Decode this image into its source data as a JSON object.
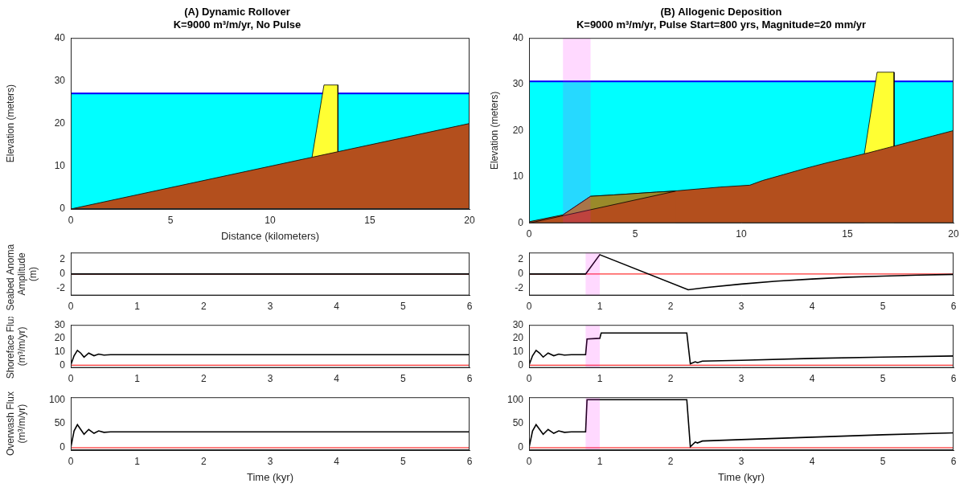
{
  "chart_data": [
    {
      "type": "area",
      "title": [
        "(A) Dynamic Rollover",
        "K=9000 m³/m/yr, No Pulse"
      ],
      "x_label": "Distance (kilometers)",
      "y_label": "Elevation (meters)",
      "xlim": [
        0,
        20
      ],
      "xticks": [
        0,
        5,
        10,
        15,
        20
      ],
      "ylim": [
        0,
        40
      ],
      "yticks": [
        0,
        10,
        20,
        30,
        40
      ],
      "grid": false,
      "series": [
        {
          "type": "area",
          "color": "#00ffff",
          "x": [
            0,
            20
          ],
          "values": [
            27,
            27
          ]
        },
        {
          "type": "line",
          "color": "#0000ff",
          "x": [
            0,
            20
          ],
          "values": [
            27,
            27
          ]
        },
        {
          "type": "area",
          "color": "#ffff33",
          "x": [
            12.1,
            12.7,
            13.4,
            13.4
          ],
          "values": [
            12.1,
            29,
            29,
            13.4
          ]
        },
        {
          "type": "area",
          "color": "#b34f1d",
          "x": [
            0,
            20
          ],
          "values": [
            0,
            20
          ]
        }
      ]
    },
    {
      "type": "line",
      "y_label": [
        "Seabed Anomaly",
        "Amplitude",
        "(m)"
      ],
      "xlim": [
        0,
        6
      ],
      "xticks": [
        0,
        1,
        2,
        3,
        4,
        5,
        6
      ],
      "ylim": [
        -3,
        3
      ],
      "yticks": [
        -2,
        0,
        2
      ],
      "grid": false,
      "reference_line": {
        "value": 0,
        "color": "#ff0000"
      },
      "series": [
        {
          "type": "line",
          "color": "#000000",
          "x": [
            0,
            6
          ],
          "values": [
            0,
            0
          ]
        }
      ]
    },
    {
      "type": "line",
      "y_label": [
        "Shoreface Flux",
        "(m³/m/yr)"
      ],
      "xlim": [
        0,
        6
      ],
      "xticks": [
        0,
        1,
        2,
        3,
        4,
        5,
        6
      ],
      "ylim": [
        -2,
        30
      ],
      "yticks": [
        0,
        10,
        20,
        30
      ],
      "grid": false,
      "reference_line": {
        "value": 0,
        "color": "#ff0000"
      },
      "series": [
        {
          "type": "line",
          "color": "#000000",
          "x": [
            0,
            0.05,
            0.1,
            0.15,
            0.2,
            0.27,
            0.35,
            0.42,
            0.5,
            0.6,
            6
          ],
          "values": [
            0,
            7,
            11,
            9,
            6,
            9,
            7,
            8.2,
            7.5,
            7.8,
            7.8
          ]
        }
      ]
    },
    {
      "type": "line",
      "x_label": "Time (kyr)",
      "y_label": [
        "Overwash Flux",
        "(m³/m/yr)"
      ],
      "xlim": [
        0,
        6
      ],
      "xticks": [
        0,
        1,
        2,
        3,
        4,
        5,
        6
      ],
      "ylim": [
        -5,
        105
      ],
      "yticks": [
        0,
        50,
        100
      ],
      "grid": false,
      "reference_line": {
        "value": 0,
        "color": "#ff0000"
      },
      "series": [
        {
          "type": "line",
          "color": "#000000",
          "x": [
            0,
            0.05,
            0.1,
            0.15,
            0.2,
            0.27,
            0.35,
            0.42,
            0.5,
            0.6,
            6
          ],
          "values": [
            0,
            35,
            48,
            38,
            28,
            38,
            30,
            35,
            32,
            33,
            33
          ]
        }
      ]
    },
    {
      "type": "area",
      "title": [
        "(B) Allogenic Deposition",
        "K=9000 m³/m/yr, Pulse Start=800 yrs, Magnitude=20 mm/yr"
      ],
      "y_label": "Elevation (meters)",
      "xlim": [
        0,
        20
      ],
      "xticks": [
        0,
        5,
        10,
        15,
        20
      ],
      "ylim": [
        0,
        40
      ],
      "yticks": [
        0,
        10,
        20,
        30,
        40
      ],
      "grid": false,
      "shaded_band": {
        "from": 1.6,
        "to": 2.9,
        "color": "#ff00ff"
      },
      "series": [
        {
          "type": "area",
          "color": "#00ffff",
          "x": [
            0,
            20
          ],
          "values": [
            30.6,
            30.6
          ]
        },
        {
          "type": "line",
          "color": "#0000ff",
          "x": [
            0,
            20
          ],
          "values": [
            30.6,
            30.6
          ]
        },
        {
          "type": "area",
          "color": "#ffff33",
          "x": [
            15.8,
            16.4,
            17.2,
            17.2
          ],
          "values": [
            15.0,
            32.6,
            32.6,
            16.6
          ]
        },
        {
          "type": "area",
          "color": "#b34f1d",
          "x": [
            0,
            1.6,
            2.9,
            4,
            5,
            6,
            7,
            8,
            9,
            10.4,
            11,
            12,
            13,
            14,
            15,
            16,
            17,
            18,
            19,
            20
          ],
          "values": [
            0.3,
            1.8,
            5.8,
            6.1,
            6.4,
            6.7,
            7.0,
            7.4,
            7.8,
            8.2,
            9.2,
            10.5,
            11.8,
            13,
            14.1,
            15.2,
            16.4,
            17.6,
            18.8,
            20
          ]
        },
        {
          "type": "area",
          "color": "#9a8a2a",
          "x": [
            1.6,
            2.9,
            4,
            5,
            6,
            6.9
          ],
          "values": [
            1.8,
            5.8,
            6.1,
            6.4,
            6.7,
            6.9
          ]
        },
        {
          "type": "area",
          "color": "#b34f1d",
          "x": [
            0,
            6.9
          ],
          "values": [
            0,
            6.9
          ]
        }
      ]
    },
    {
      "type": "line",
      "xlim": [
        0,
        6
      ],
      "xticks": [
        0,
        1,
        2,
        3,
        4,
        5,
        6
      ],
      "ylim": [
        -3,
        3
      ],
      "yticks": [
        -2,
        0,
        2
      ],
      "grid": false,
      "reference_line": {
        "value": 0,
        "color": "#ff0000"
      },
      "shaded_band": {
        "from": 0.8,
        "to": 1.0,
        "color": "#ff00ff"
      },
      "series": [
        {
          "type": "line",
          "color": "#000000",
          "x": [
            0,
            0.8,
            1.0,
            2.25,
            2.5,
            3,
            3.5,
            4,
            4.5,
            5,
            5.5,
            6
          ],
          "values": [
            0,
            0,
            2.7,
            -2.2,
            -1.9,
            -1.4,
            -1.0,
            -0.7,
            -0.45,
            -0.3,
            -0.15,
            -0.05
          ]
        }
      ]
    },
    {
      "type": "line",
      "xlim": [
        0,
        6
      ],
      "xticks": [
        0,
        1,
        2,
        3,
        4,
        5,
        6
      ],
      "ylim": [
        -2,
        30
      ],
      "yticks": [
        0,
        10,
        20,
        30
      ],
      "grid": false,
      "reference_line": {
        "value": 0,
        "color": "#ff0000"
      },
      "shaded_band": {
        "from": 0.8,
        "to": 1.0,
        "color": "#ff00ff"
      },
      "series": [
        {
          "type": "line",
          "color": "#000000",
          "x": [
            0,
            0.05,
            0.1,
            0.15,
            0.2,
            0.27,
            0.35,
            0.42,
            0.5,
            0.6,
            0.8,
            0.82,
            1.0,
            1.02,
            2.23,
            2.28,
            2.35,
            2.38,
            2.45,
            3,
            4,
            5,
            6
          ],
          "values": [
            0,
            7,
            11,
            9,
            6,
            9,
            7,
            8.2,
            7.5,
            7.8,
            7.8,
            19.5,
            20,
            24,
            24,
            1,
            2.5,
            1.8,
            3,
            3.6,
            5,
            6,
            6.8
          ]
        }
      ]
    },
    {
      "type": "line",
      "x_label": "Time (kyr)",
      "xlim": [
        0,
        6
      ],
      "xticks": [
        0,
        1,
        2,
        3,
        4,
        5,
        6
      ],
      "ylim": [
        -5,
        105
      ],
      "yticks": [
        0,
        50,
        100
      ],
      "grid": false,
      "reference_line": {
        "value": 0,
        "color": "#ff0000"
      },
      "shaded_band": {
        "from": 0.8,
        "to": 1.0,
        "color": "#ff00ff"
      },
      "series": [
        {
          "type": "line",
          "color": "#000000",
          "x": [
            0,
            0.05,
            0.1,
            0.15,
            0.2,
            0.27,
            0.35,
            0.42,
            0.5,
            0.6,
            0.8,
            0.82,
            1.0,
            1.02,
            2.23,
            2.28,
            2.35,
            2.38,
            2.45,
            3,
            4,
            5,
            6
          ],
          "values": [
            0,
            35,
            48,
            38,
            28,
            38,
            30,
            35,
            32,
            33,
            33,
            100,
            100,
            100,
            100,
            2,
            12,
            10,
            14,
            17,
            22,
            27,
            31
          ]
        }
      ]
    }
  ]
}
